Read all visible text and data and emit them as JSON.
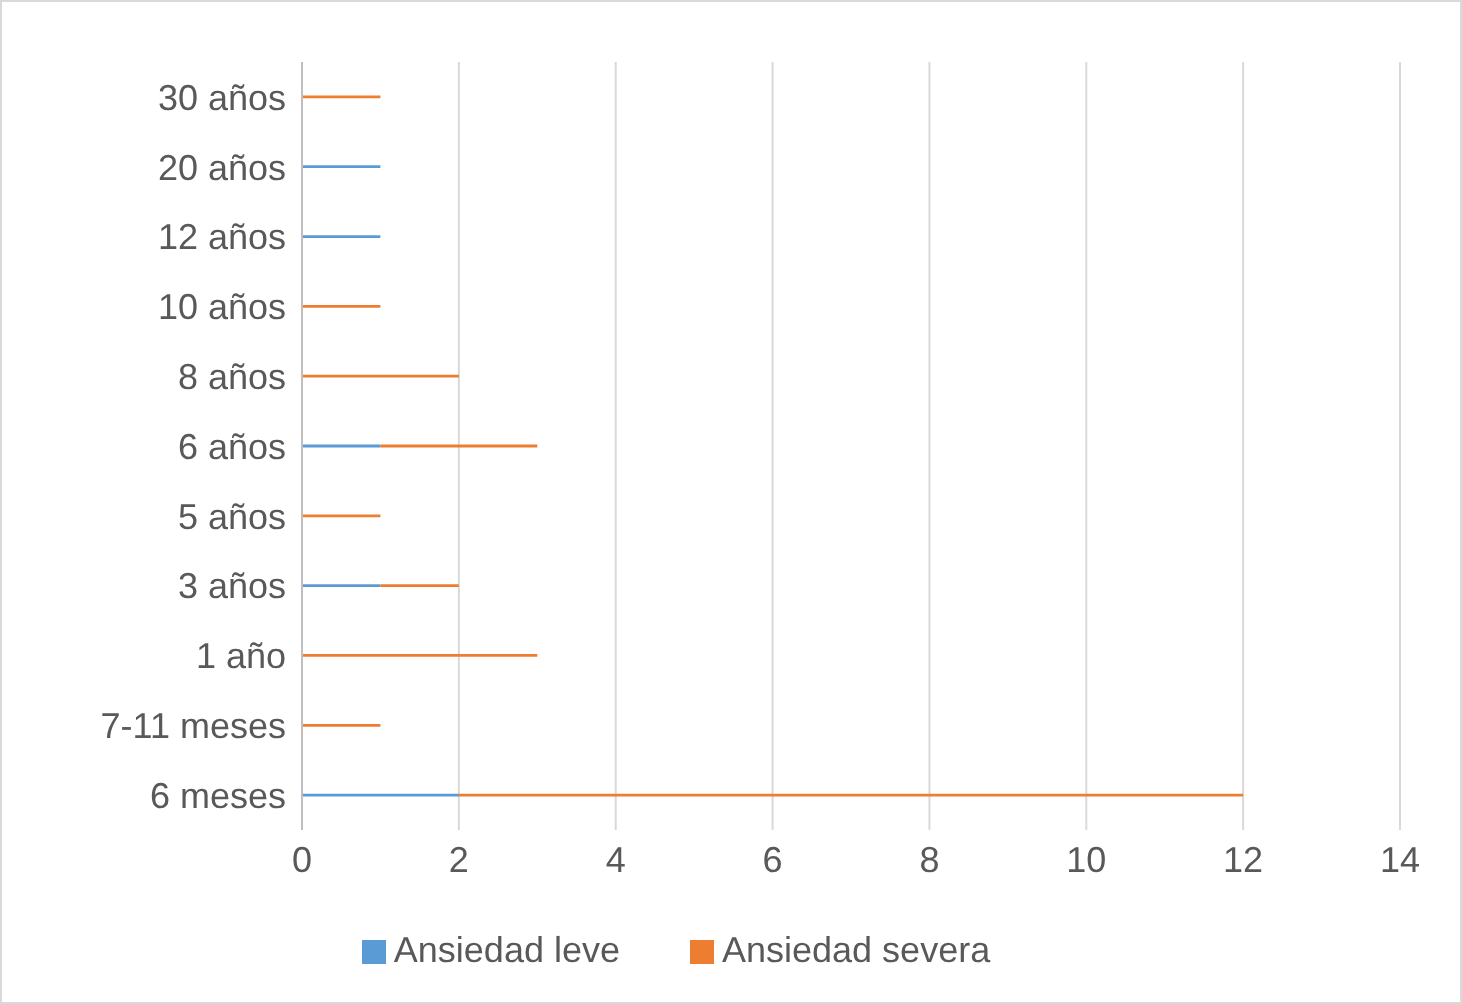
{
  "chart_data": {
    "type": "bar",
    "orientation": "horizontal",
    "stacked": true,
    "categories": [
      "30 años",
      "20 años",
      "12 años",
      "10 años",
      "8 años",
      "6 años",
      "5  años",
      "3 años",
      "1 año",
      "7-11 meses",
      "6 meses"
    ],
    "series": [
      {
        "name": "Ansiedad leve",
        "color": "#5b9bd5",
        "values": [
          0,
          1,
          1,
          0,
          0,
          1,
          0,
          1,
          0,
          0,
          2
        ]
      },
      {
        "name": "Ansiedad severa",
        "color": "#ed7d31",
        "values": [
          1,
          0,
          0,
          1,
          2,
          2,
          1,
          1,
          3,
          1,
          10
        ]
      }
    ],
    "xlim": [
      0,
      14
    ],
    "xticks": [
      0,
      2,
      4,
      6,
      8,
      10,
      12,
      14
    ],
    "grid": "x",
    "legend": "bottom"
  }
}
